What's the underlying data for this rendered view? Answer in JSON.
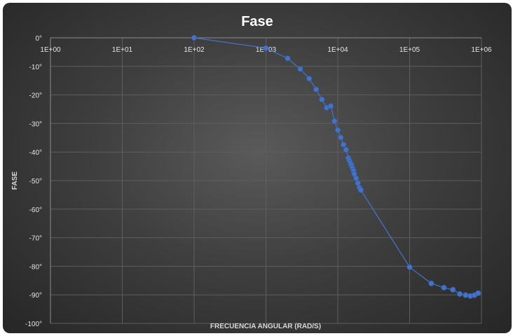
{
  "chart_data": {
    "type": "scatter",
    "title": "Fase",
    "xlabel": "FRECUENCIA ANGULAR (RAD/S)",
    "ylabel": "FASE",
    "x_scale": "log",
    "xlim": [
      1,
      1000000
    ],
    "ylim": [
      -100,
      0
    ],
    "x_tick_labels": [
      "1E+00",
      "1E+01",
      "1E+02",
      "1E+03",
      "1E+04",
      "1E+05",
      "1E+06"
    ],
    "y_tick_labels": [
      "0°",
      "-10°",
      "-20°",
      "-30°",
      "-40°",
      "-50°",
      "-60°",
      "-70°",
      "-80°",
      "-90°",
      "-100°"
    ],
    "grid": true,
    "line_color": "#4472c4",
    "series": [
      {
        "x": [
          100,
          1000,
          2000,
          3000,
          4000,
          5000,
          6000,
          7000,
          8000,
          9000,
          10000,
          11000,
          12000,
          13000,
          14000,
          14500,
          15000,
          15500,
          16000,
          16500,
          17000,
          18000,
          19000,
          20000,
          21000,
          100000,
          200000,
          300000,
          400000,
          500000,
          600000,
          700000,
          800000,
          900000
        ],
        "y": [
          0,
          -3.6,
          -7.2,
          -10.9,
          -14.3,
          -18.1,
          -21.6,
          -24.5,
          -23.9,
          -29.2,
          -32.3,
          -34.9,
          -37.4,
          -39.2,
          -42.1,
          -43,
          -43.8,
          -44.6,
          -45.6,
          -46.5,
          -47.7,
          -49.2,
          -50.9,
          -52.5,
          -53.3,
          -80.3,
          -86,
          -87.5,
          -88.2,
          -89.7,
          -90.1,
          -90.4,
          -90.1,
          -89.4
        ]
      }
    ]
  }
}
